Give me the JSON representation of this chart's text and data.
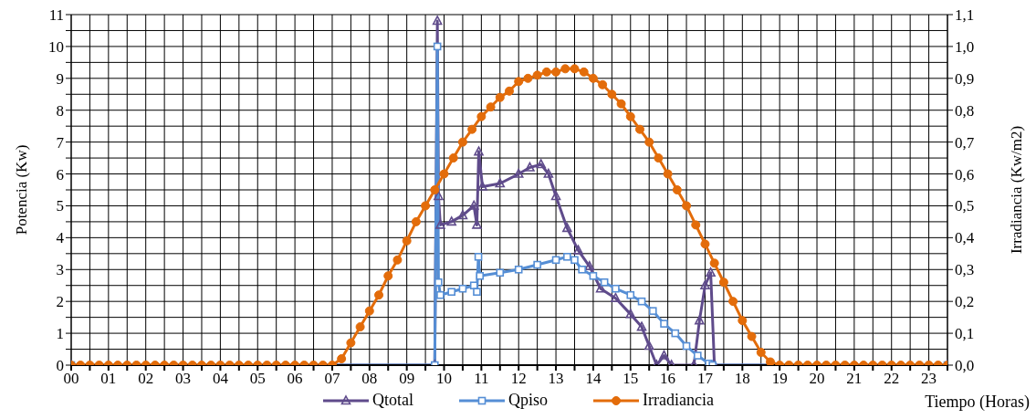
{
  "chart_data": {
    "type": "line",
    "xlabel": "Tiempo (Horas)",
    "ylabel": "Potencia (Kw)",
    "y2label": "Irradiancia (Kw/m2)",
    "xlim": [
      0,
      23.5
    ],
    "xticks": [
      {
        "value": 0,
        "label": "00"
      },
      {
        "value": 0.5,
        "label": null
      },
      {
        "value": 1,
        "label": "01"
      },
      {
        "value": 1.5,
        "label": null
      },
      {
        "value": 2,
        "label": "02"
      },
      {
        "value": 2.5,
        "label": null
      },
      {
        "value": 3,
        "label": "03"
      },
      {
        "value": 3.5,
        "label": null
      },
      {
        "value": 4,
        "label": "04"
      },
      {
        "value": 4.5,
        "label": null
      },
      {
        "value": 5,
        "label": "05"
      },
      {
        "value": 5.5,
        "label": null
      },
      {
        "value": 6,
        "label": "06"
      },
      {
        "value": 6.5,
        "label": null
      },
      {
        "value": 7,
        "label": "07"
      },
      {
        "value": 7.5,
        "label": null
      },
      {
        "value": 8,
        "label": "08"
      },
      {
        "value": 8.5,
        "label": null
      },
      {
        "value": 9,
        "label": "09"
      },
      {
        "value": 9.5,
        "label": null
      },
      {
        "value": 10,
        "label": "10"
      },
      {
        "value": 10.5,
        "label": null
      },
      {
        "value": 11,
        "label": "11"
      },
      {
        "value": 11.5,
        "label": null
      },
      {
        "value": 12,
        "label": "12"
      },
      {
        "value": 12.5,
        "label": null
      },
      {
        "value": 13,
        "label": "13"
      },
      {
        "value": 13.5,
        "label": null
      },
      {
        "value": 14,
        "label": "14"
      },
      {
        "value": 14.5,
        "label": null
      },
      {
        "value": 15,
        "label": "15"
      },
      {
        "value": 15.5,
        "label": null
      },
      {
        "value": 16,
        "label": "16"
      },
      {
        "value": 16.5,
        "label": null
      },
      {
        "value": 17,
        "label": "17"
      },
      {
        "value": 17.5,
        "label": null
      },
      {
        "value": 18,
        "label": "18"
      },
      {
        "value": 18.5,
        "label": null
      },
      {
        "value": 19,
        "label": "19"
      },
      {
        "value": 19.5,
        "label": null
      },
      {
        "value": 20,
        "label": "20"
      },
      {
        "value": 20.5,
        "label": null
      },
      {
        "value": 21,
        "label": "21"
      },
      {
        "value": 21.5,
        "label": null
      },
      {
        "value": 22,
        "label": "22"
      },
      {
        "value": 22.5,
        "label": null
      },
      {
        "value": 23,
        "label": "23"
      },
      {
        "value": 23.5,
        "label": null
      }
    ],
    "ylim": [
      0,
      11
    ],
    "yticks": [
      0,
      {
        "value": 0.5,
        "label": null
      },
      1,
      {
        "value": 1.5,
        "label": null
      },
      2,
      {
        "value": 2.5,
        "label": null
      },
      3,
      {
        "value": 3.5,
        "label": null
      },
      4,
      {
        "value": 4.5,
        "label": null
      },
      5,
      {
        "value": 5.5,
        "label": null
      },
      6,
      {
        "value": 6.5,
        "label": null
      },
      7,
      {
        "value": 7.5,
        "label": null
      },
      8,
      {
        "value": 8.5,
        "label": null
      },
      9,
      {
        "value": 9.5,
        "label": null
      },
      10,
      {
        "value": 10.5,
        "label": null
      },
      11
    ],
    "y2lim": [
      0,
      1.1
    ],
    "y2ticks": [
      {
        "value": 0,
        "label": "0,0"
      },
      {
        "value": 0.1,
        "label": "0,1"
      },
      {
        "value": 0.2,
        "label": "0,2"
      },
      {
        "value": 0.3,
        "label": "0,3"
      },
      {
        "value": 0.4,
        "label": "0,4"
      },
      {
        "value": 0.5,
        "label": "0,5"
      },
      {
        "value": 0.6,
        "label": "0,6"
      },
      {
        "value": 0.7,
        "label": "0,7"
      },
      {
        "value": 0.8,
        "label": "0,8"
      },
      {
        "value": 0.9,
        "label": "0,9"
      },
      {
        "value": 1.0,
        "label": "1,0"
      },
      {
        "value": 1.1,
        "label": "1,1"
      }
    ],
    "grid": true,
    "legend": "bottom",
    "line_style": "solid",
    "series": [
      {
        "name": "Qtotal",
        "color": "#5f4b8b",
        "marker": "triangle",
        "x": [
          0,
          9.75,
          9.82,
          9.85,
          9.9,
          10.2,
          10.5,
          10.8,
          10.88,
          10.93,
          11.03,
          11.5,
          12,
          12.3,
          12.6,
          12.8,
          13,
          13.3,
          13.6,
          13.9,
          14.2,
          14.6,
          15,
          15.3,
          15.5,
          15.7,
          15.9,
          16.1,
          16.7,
          16.85,
          17,
          17.15,
          17.25,
          23.5
        ],
        "values": [
          0,
          0,
          10.8,
          5.3,
          4.4,
          4.5,
          4.7,
          5.0,
          4.4,
          6.7,
          5.6,
          5.7,
          6.0,
          6.2,
          6.3,
          6.0,
          5.3,
          4.3,
          3.6,
          3.1,
          2.4,
          2.1,
          1.6,
          1.2,
          0.6,
          0,
          0.3,
          0,
          0,
          1.4,
          2.5,
          2.9,
          0,
          0
        ]
      },
      {
        "name": "Qpiso",
        "color": "#558ed5",
        "marker": "square",
        "x": [
          0,
          9.75,
          9.82,
          9.85,
          9.9,
          10.2,
          10.5,
          10.8,
          10.88,
          10.92,
          10.96,
          11.5,
          12,
          12.5,
          13,
          13.3,
          13.5,
          13.7,
          14,
          14.3,
          14.6,
          15,
          15.3,
          15.6,
          15.9,
          16.2,
          16.5,
          16.8,
          17.1,
          17.2,
          23.5
        ],
        "values": [
          0,
          0,
          10,
          2.6,
          2.2,
          2.3,
          2.4,
          2.5,
          2.3,
          3.4,
          2.8,
          2.9,
          3.0,
          3.15,
          3.3,
          3.4,
          3.3,
          3.0,
          2.8,
          2.6,
          2.4,
          2.2,
          2.0,
          1.7,
          1.3,
          1.0,
          0.6,
          0.3,
          0.05,
          0,
          0
        ]
      },
      {
        "name": "Irradiancia",
        "color": "#e36c0a",
        "marker": "circle",
        "axis": "y2",
        "x": [
          0,
          0.25,
          0.5,
          0.75,
          1,
          1.25,
          1.5,
          1.75,
          2,
          2.25,
          2.5,
          2.75,
          3,
          3.25,
          3.5,
          3.75,
          4,
          4.25,
          4.5,
          4.75,
          5,
          5.25,
          5.5,
          5.75,
          6,
          6.25,
          6.5,
          6.75,
          7,
          7.25,
          7.5,
          7.75,
          8,
          8.25,
          8.5,
          8.75,
          9,
          9.25,
          9.5,
          9.75,
          10,
          10.25,
          10.5,
          10.75,
          11,
          11.25,
          11.5,
          11.75,
          12,
          12.25,
          12.5,
          12.75,
          13,
          13.25,
          13.5,
          13.75,
          14,
          14.25,
          14.5,
          14.75,
          15,
          15.25,
          15.5,
          15.75,
          16,
          16.25,
          16.5,
          16.75,
          17,
          17.25,
          17.5,
          17.75,
          18,
          18.25,
          18.5,
          18.75,
          19,
          19.25,
          19.5,
          19.75,
          20,
          20.25,
          20.5,
          20.75,
          21,
          21.25,
          21.5,
          21.75,
          22,
          22.25,
          22.5,
          22.75,
          23,
          23.25,
          23.5
        ],
        "values": [
          0,
          0,
          0,
          0,
          0,
          0,
          0,
          0,
          0,
          0,
          0,
          0,
          0,
          0,
          0,
          0,
          0,
          0,
          0,
          0,
          0,
          0,
          0,
          0,
          0,
          0,
          0,
          0,
          0,
          0.02,
          0.07,
          0.12,
          0.17,
          0.22,
          0.28,
          0.33,
          0.39,
          0.45,
          0.5,
          0.55,
          0.6,
          0.65,
          0.7,
          0.74,
          0.78,
          0.81,
          0.84,
          0.86,
          0.89,
          0.9,
          0.91,
          0.92,
          0.92,
          0.93,
          0.93,
          0.92,
          0.9,
          0.88,
          0.85,
          0.82,
          0.78,
          0.74,
          0.7,
          0.65,
          0.6,
          0.55,
          0.5,
          0.44,
          0.38,
          0.32,
          0.26,
          0.2,
          0.14,
          0.09,
          0.04,
          0.01,
          0,
          0,
          0,
          0,
          0,
          0,
          0,
          0,
          0,
          0,
          0,
          0,
          0,
          0,
          0,
          0,
          0,
          0,
          0
        ]
      }
    ]
  }
}
